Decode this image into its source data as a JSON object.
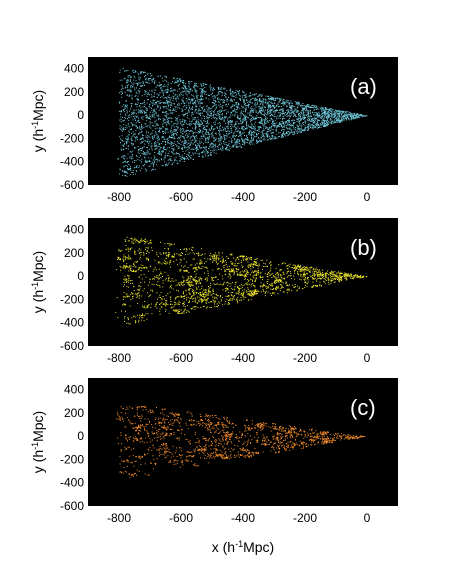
{
  "chart_data": [
    {
      "type": "scatter",
      "panel_label": "(a)",
      "color": "#6ec6d8",
      "density": 1.0,
      "clumping": 0.15,
      "xlim": [
        -900,
        100
      ],
      "ylim": [
        -600,
        500
      ],
      "xticks": [
        -800,
        -600,
        -400,
        -200,
        0
      ],
      "yticks": [
        400,
        200,
        0,
        -200,
        -400,
        -600
      ],
      "xtick_labels": [
        "-800",
        "-600",
        "-400",
        "-200",
        "0"
      ],
      "ytick_labels": [
        "400",
        "200",
        "0",
        "-200",
        "-400",
        "-600"
      ],
      "ylabel_main": "y (h",
      "ylabel_sup": "-1",
      "ylabel_end": "Mpc)",
      "wedge": {
        "apex": [
          0,
          0
        ],
        "far_x": -800,
        "far_y_top": 420,
        "far_y_bottom": -540
      }
    },
    {
      "type": "scatter",
      "panel_label": "(b)",
      "color": "#e6e02a",
      "density": 0.55,
      "clumping": 0.7,
      "xlim": [
        -900,
        100
      ],
      "ylim": [
        -600,
        500
      ],
      "xticks": [
        -800,
        -600,
        -400,
        -200,
        0
      ],
      "yticks": [
        400,
        200,
        0,
        -200,
        -400,
        -600
      ],
      "xtick_labels": [
        "-800",
        "-600",
        "-400",
        "-200",
        "0"
      ],
      "ytick_labels": [
        "400",
        "200",
        "0",
        "-200",
        "-400",
        "-600"
      ],
      "ylabel_main": "y (h",
      "ylabel_sup": "-1",
      "ylabel_end": "Mpc)",
      "wedge": {
        "apex": [
          0,
          0
        ],
        "far_x": -800,
        "far_y_top": 360,
        "far_y_bottom": -430
      }
    },
    {
      "type": "scatter",
      "panel_label": "(c)",
      "color": "#f08a2a",
      "density": 0.4,
      "clumping": 0.85,
      "xlim": [
        -900,
        100
      ],
      "ylim": [
        -600,
        500
      ],
      "xticks": [
        -800,
        -600,
        -400,
        -200,
        0
      ],
      "yticks": [
        400,
        200,
        0,
        -200,
        -400,
        -600
      ],
      "xtick_labels": [
        "-800",
        "-600",
        "-400",
        "-200",
        "0"
      ],
      "ytick_labels": [
        "400",
        "200",
        "0",
        "-200",
        "-400",
        "-600"
      ],
      "ylabel_main": "y (h",
      "ylabel_sup": "-1",
      "ylabel_end": "Mpc)",
      "xlabel_main": "x (h",
      "xlabel_sup": "-1",
      "xlabel_end": "Mpc)",
      "wedge": {
        "apex": [
          0,
          0
        ],
        "far_x": -800,
        "far_y_top": 300,
        "far_y_bottom": -380
      }
    }
  ]
}
